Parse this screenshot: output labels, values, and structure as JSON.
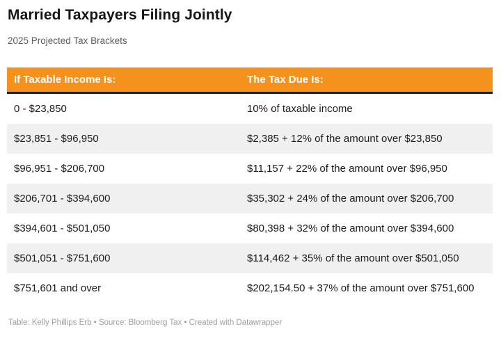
{
  "colors": {
    "header_bg": "#F5921E",
    "header_text": "#FFFFFF",
    "header_border": "#232323",
    "row_alt_bg": "#F0F0F0"
  },
  "chart_data": {
    "type": "table",
    "title": "Married Taxpayers Filing Jointly",
    "subtitle": "2025 Projected Tax Brackets",
    "columns": [
      "If Taxable Income Is:",
      "The Tax Due Is:"
    ],
    "rows": [
      [
        "0 - $23,850",
        "10% of taxable income"
      ],
      [
        "$23,851 - $96,950",
        "$2,385 + 12% of the amount over $23,850"
      ],
      [
        "$96,951 - $206,700",
        "$11,157 + 22% of the amount over $96,950"
      ],
      [
        "$206,701 - $394,600",
        "$35,302 + 24% of the amount over $206,700"
      ],
      [
        "$394,601 - $501,050",
        "$80,398 + 32% of the amount over $394,600"
      ],
      [
        "$501,051 - $751,600",
        "$114,462 + 35% of the amount over $501,050"
      ],
      [
        "$751,601 and over",
        "$202,154.50 + 37% of the amount over $751,600"
      ]
    ],
    "footer": "Table: Kelly Phillips Erb • Source: Bloomberg Tax • Created with Datawrapper"
  }
}
